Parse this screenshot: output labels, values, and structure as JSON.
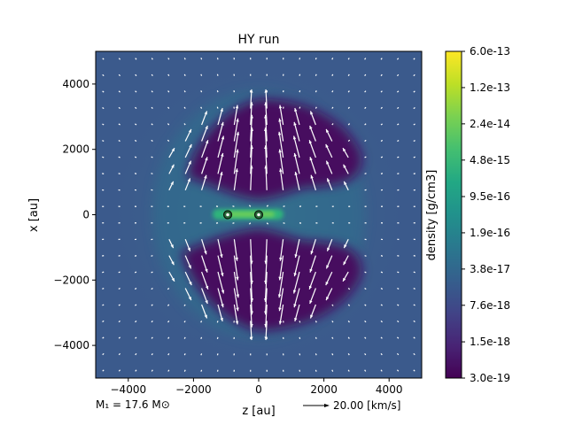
{
  "chart_data": {
    "type": "heatmap",
    "title": "HY run",
    "xlabel": "z [au]",
    "ylabel": "x [au]",
    "xlim": [
      -5000,
      5000
    ],
    "ylim": [
      -5000,
      5000
    ],
    "xticks": [
      -4000,
      -2000,
      0,
      2000,
      4000
    ],
    "yticks": [
      -4000,
      -2000,
      0,
      2000,
      4000
    ],
    "xtick_labels": [
      "−4000",
      "−2000",
      "0",
      "2000",
      "4000"
    ],
    "ytick_labels": [
      "−4000",
      "−2000",
      "0",
      "2000",
      "4000"
    ],
    "colorbar": {
      "label": "density [g/cm3]",
      "ticks": [
        6e-13,
        1.2e-13,
        2.4e-14,
        4.8e-15,
        9.5e-16,
        1.9e-16,
        3.8e-17,
        7.6e-18,
        1.5e-18,
        3e-19
      ],
      "tick_labels": [
        "6.0e-13",
        "1.2e-13",
        "2.4e-14",
        "4.8e-15",
        "9.5e-16",
        "1.9e-16",
        "3.8e-17",
        "7.6e-18",
        "1.5e-18",
        "3.0e-19"
      ],
      "range": [
        3e-19,
        6e-13
      ],
      "colormap": "viridis"
    },
    "stars": [
      {
        "z": -950,
        "x": 0
      },
      {
        "z": 0,
        "x": 0
      }
    ],
    "annotations": {
      "mass": "M₁ = 17.6 M⊙",
      "vector_key": "20.00 [km/s]"
    },
    "background_color": "#3b5a8c",
    "cavity_color": "#46105f",
    "disk_color": "#2fb47c"
  }
}
